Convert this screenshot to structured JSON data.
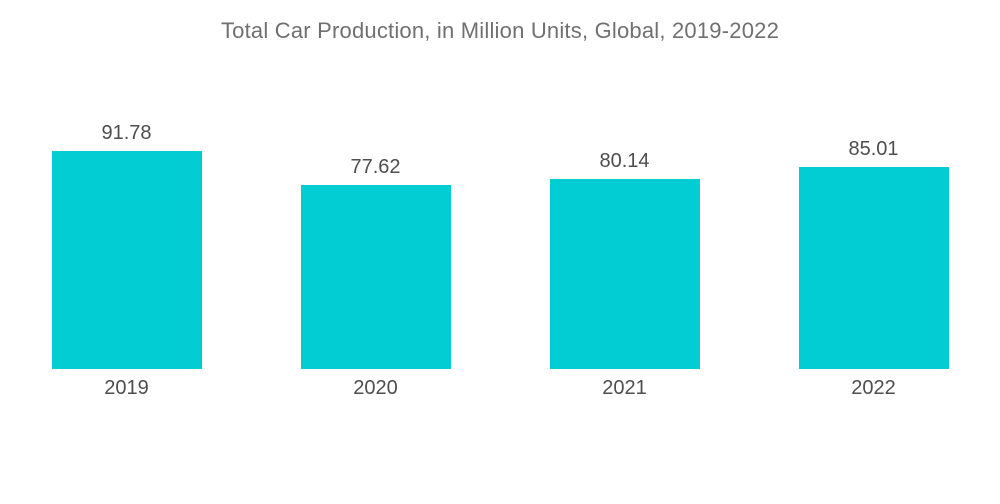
{
  "title": "Total Car Production, in Million Units, Global, 2019-2022",
  "chart_data": {
    "type": "bar",
    "title": "Total Car Production, in Million Units, Global, 2019-2022",
    "categories": [
      "2019",
      "2020",
      "2021",
      "2022"
    ],
    "values": [
      91.78,
      77.62,
      80.14,
      85.01
    ],
    "value_labels": [
      "91.78",
      "77.62",
      "80.14",
      "85.01"
    ],
    "unit": "Million Units",
    "xlabel": "",
    "ylabel": "",
    "ylim": [
      0,
      100
    ],
    "grid": false,
    "legend": false,
    "bar_color": "#02cdd3",
    "title_color": "#707070",
    "label_color": "#4e4e4e",
    "background_color": "#ffffff"
  }
}
